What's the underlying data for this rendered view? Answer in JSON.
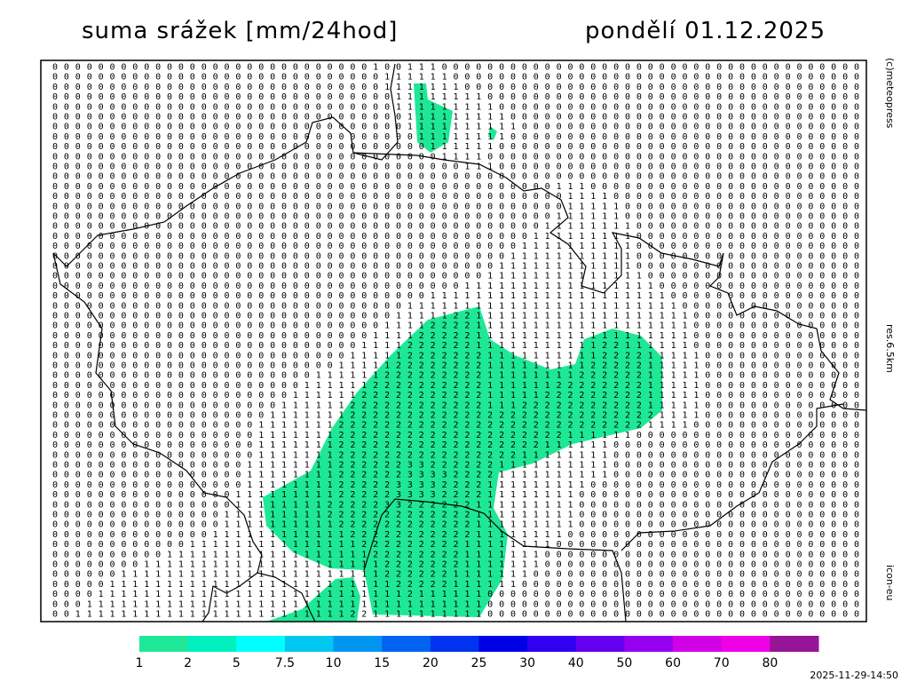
{
  "header": {
    "title": "suma srážek [mm/24hod]",
    "date": "pondělí 01.12.2025"
  },
  "side_labels": {
    "copyright": "(c)meteopress",
    "resolution": "res.6.5km",
    "model": "icon-eu"
  },
  "footer": {
    "timestamp": "2025-11-29-14:50"
  },
  "legend": {
    "labels": [
      "1",
      "2",
      "5",
      "7.5",
      "10",
      "15",
      "20",
      "25",
      "30",
      "40",
      "50",
      "60",
      "70",
      "80"
    ],
    "colors": [
      "#1ee896",
      "#00f0c0",
      "#00ffff",
      "#00c8f0",
      "#0096f0",
      "#0064f0",
      "#0032f0",
      "#0000e6",
      "#3200f0",
      "#6400f0",
      "#9600f0",
      "#d200e6",
      "#f000e6",
      "#961496"
    ]
  },
  "grid": {
    "rows": [
      "00000000000000000000000000001001110000000000000000000000000000000000000",
      "00000000000000000000000000000111111000000000000000000000000000000000000",
      "00000000000000000000000000000111111100000000000000000000000000000000000",
      "00000000000000000000000000000011111111000000000000000000000000000000000",
      "00000000000000000000000000000011111111100000000000000000000000000000000",
      "00000000000000000000000000000001111111110000000000000000000000000000000",
      "00000000000000000000000000000001111111111000000000000000000000000000000",
      "00000000000000000000000000000000111111110000000000000000000000000000000",
      "00000000000000000000000000000000011111100000000000000000000000000000000",
      "00000000000000000000000000000000001111000000000000000000000000000000000",
      "00000000000000000000000000000000000011100000000000000000000000000000000",
      "00000000000000000000000000000000000000000000000000000000000000000000000",
      "00000000000000000000000000000000000000000000111000000000000000000000000",
      "00000000000000000000000000000000000000000000011110000000000000000000000",
      "00000000000000000000000000000000000000000000011111000000000000000000000",
      "00000000000000000000000000000000000000000000111111000000000000000000000",
      "00000000000000000000000000000000000000000001111111100000000000000000000",
      "00000000000000000000000000000000000000000011111111100000000000000000000",
      "00000000000000000000000000000000000000000111111111100000000000000000000",
      "00000000000000000000000000000000000000001111111111100000000000000000000",
      "00000000000000000000000000000000000000011111111111100000000000000000000",
      "00000000000000000000000000000000000000111111111111110000000000000000000",
      "00000000000000000000000000000000000011111111111111111000000000000000000",
      "00000000000000000000000000000000011111111111111111111100000000000000000",
      "00000000000000000000000000000001111111111111111111111110000000000000000",
      "00000000000000000000000000000011111221111111111111111111000000000000000",
      "00000000000000000000000000000111122221111111111111111111000000000000000",
      "00000000000000000000000000001111222221111111111111111111000000000000000",
      "00000000000000000000000000011112222221111111111122111111000000000000000",
      "00000000000000000000000000111112222222111111111122221111100000000000000",
      "00000000000000000000000001111122222222111111111222221111100000000000000",
      "00000000000000000000000111111222222222111111112222221111100000000000000",
      "00000000000000000000001111112222222222111111222222221111100000000000000",
      "00000000000000000000011111122222222222111112222222221111100000000000000",
      "00000000000000000000111111222222222222111222222222221111100000000000000",
      "00000000000000000001111111222222222222222222222222222111100000000000000",
      "00000000000000000011111112222222222222222222222222221111000000000000000",
      "00000000000000000011111112222222222222222222211111100000000000000000000",
      "00000000000000000011111112222222222222222221111110000000000000000000000",
      "00000000000000000011111112222222222222222111111110000000000000000000000",
      "00000000000000000111111112222223322222211111111110000000000000000000000",
      "00000000000000000111111112222223333222211111111110000000000000000000000",
      "00000000000000000111111112222233332222111111111000000000000000000000000",
      "00000000000000001111111112222233332222111111110000000000000000000000000",
      "00000000000000001111111122222332222221111111110000000000000000000000000",
      "00000000000000011111111122222222222221111111110000000000000000000000000",
      "00000000000000011111111112222222222221111111110000000000000000000000000",
      "00000000000000111111111111222222222221111111100000000000000000000000000",
      "00000000000011111111111111122222222211111111000000000000000000000000000",
      "00000000001111111111111111112222222211111110000000000000000000000000000",
      "00000000111111111111111111111222222211111110000000000000000000000000000",
      "00000011111111111111111111111222222111111100000000000000000000000000000",
      "00000111111111111111111111111122222111111000000000000000000000000000000",
      "00001111111111111111111111111112111111000000000000000000000000000000000",
      "00011111111111111111111111111111111111000000000000000000000000000000000",
      "00111111111111111111111111221111111111000000000000000000000000000000000"
    ]
  }
}
